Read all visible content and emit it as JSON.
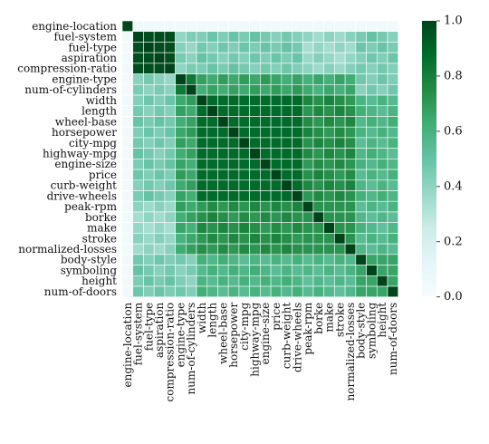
{
  "chart_data": {
    "type": "heatmap",
    "title": "",
    "xlabel": "",
    "ylabel": "",
    "labels": [
      "engine-location",
      "fuel-system",
      "fuel-type",
      "aspiration",
      "compression-ratio",
      "engine-type",
      "num-of-cylinders",
      "width",
      "length",
      "wheel-base",
      "horsepower",
      "city-mpg",
      "highway-mpg",
      "engine-size",
      "price",
      "curb-weight",
      "drive-wheels",
      "peak-rpm",
      "borke",
      "make",
      "stroke",
      "normalized-losses",
      "body-style",
      "symboling",
      "height",
      "num-of-doors"
    ],
    "groups": [
      {
        "name": "g0",
        "members": [
          0
        ]
      },
      {
        "name": "g1",
        "members": [
          1,
          2,
          3,
          4
        ]
      },
      {
        "name": "g2",
        "members": [
          5,
          6
        ]
      },
      {
        "name": "g3",
        "members": [
          7,
          8,
          9,
          10,
          11,
          12,
          13,
          14,
          15,
          16
        ]
      },
      {
        "name": "g4",
        "members": [
          17,
          18,
          19,
          20,
          21
        ]
      },
      {
        "name": "g5",
        "members": [
          22,
          23,
          24,
          25
        ]
      }
    ],
    "colorbar": {
      "min": 0.0,
      "max": 1.0,
      "ticks": [
        0.0,
        0.2,
        0.4,
        0.6,
        0.8,
        1.0
      ],
      "tick_labels": [
        "0.0",
        "0.2",
        "0.4",
        "0.6",
        "0.8",
        "1.0"
      ],
      "colors": [
        "#f7fcfd",
        "#e5f5f9",
        "#ccece6",
        "#99d8c9",
        "#66c2a4",
        "#41ae76",
        "#238b45",
        "#006d2c",
        "#00441b"
      ]
    },
    "grid": false
  }
}
